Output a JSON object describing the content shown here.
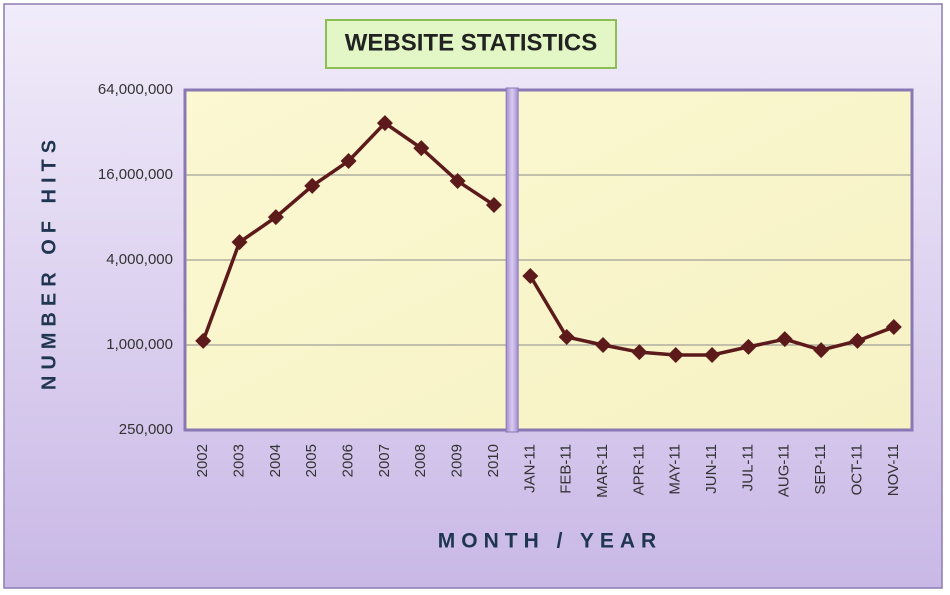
{
  "chart_data": {
    "type": "line",
    "title": "WEBSITE STATISTICS",
    "y_label": "NUMBER OF HITS",
    "x_label": "MONTH / YEAR",
    "categories": [
      "2002",
      "2003",
      "2004",
      "2005",
      "2006",
      "2007",
      "2008",
      "2009",
      "2010",
      "JAN-11",
      "FEB-11",
      "MAR-11",
      "APR-11",
      "MAY-11",
      "JUN-11",
      "JUL-11",
      "AUG-11",
      "SEP-11",
      "OCT-11",
      "NOV-11"
    ],
    "series": [
      {
        "color": "#5c1a1a",
        "values": [
          1070000,
          5350000,
          8050000,
          13400000,
          20100000,
          37300000,
          24800000,
          14500000,
          9800000,
          null,
          null,
          null,
          null,
          null,
          null,
          null,
          null,
          null,
          null,
          null
        ]
      },
      {
        "color": "#5c1a1a",
        "values": [
          null,
          null,
          null,
          null,
          null,
          null,
          null,
          null,
          null,
          3080000,
          1140000,
          1000000,
          890000,
          850000,
          850000,
          970000,
          1100000,
          920000,
          1070000,
          1340000
        ]
      }
    ],
    "log_scale": true,
    "ylim": [
      250000,
      64000000
    ],
    "yticks": [
      {
        "value": 250000,
        "label": "250,000"
      },
      {
        "value": 1000000,
        "label": "1,000,000"
      },
      {
        "value": 4000000,
        "label": "4,000,000"
      },
      {
        "value": 16000000,
        "label": "16,000,000"
      },
      {
        "value": 64000000,
        "label": "64,000,000"
      }
    ],
    "grid": true
  }
}
